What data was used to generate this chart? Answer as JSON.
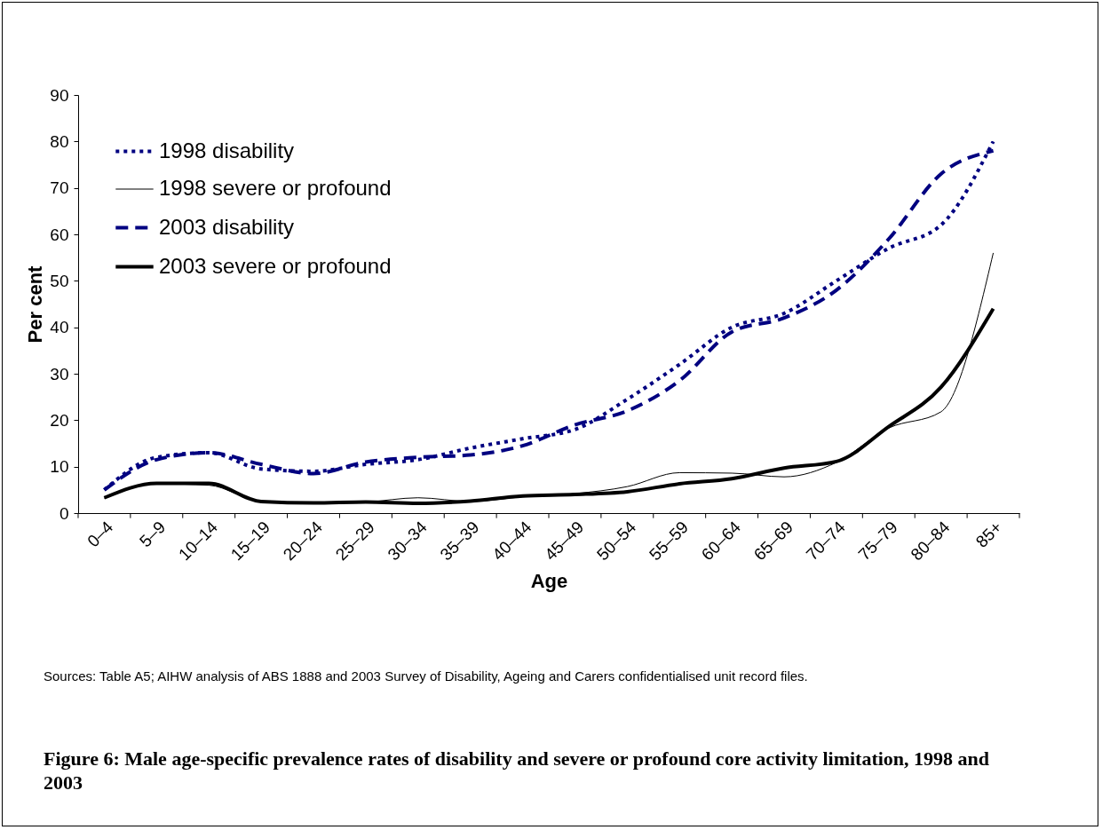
{
  "chart_data": {
    "type": "line",
    "title": "Figure 6: Male age-specific prevalence rates of disability and severe or profound core activity limitation, 1998 and 2003",
    "xlabel": "Age",
    "ylabel": "Per cent",
    "annotations": [
      "Sources: Table A5; AIHW analysis of ABS 1888 and 2003 Survey of Disability, Ageing and Carers confidentialised unit record files."
    ],
    "categories": [
      "0–4",
      "5–9",
      "10–14",
      "15–19",
      "20–24",
      "25–29",
      "30–34",
      "35–39",
      "40–44",
      "45–49",
      "50–54",
      "55–59",
      "60–64",
      "65–69",
      "70–74",
      "75–79",
      "80–84",
      "85+"
    ],
    "series": [
      {
        "name": "1998 disability",
        "color": "#000080",
        "line_style": "dotted",
        "values": [
          5,
          12,
          13,
          9.5,
          9,
          10.5,
          11.5,
          14,
          16,
          18,
          24.5,
          32,
          40,
          43,
          50,
          57,
          62,
          80
        ]
      },
      {
        "name": "1998 severe or profound",
        "color": "#000000",
        "line_style": "solid",
        "values": [
          3.2,
          6.3,
          6,
          2.5,
          2.2,
          2.4,
          3.3,
          2.5,
          3.5,
          4.2,
          5.7,
          8.7,
          8.6,
          7.8,
          10.9,
          18.3,
          21.8,
          56
        ]
      },
      {
        "name": "2003 disability",
        "color": "#000080",
        "line_style": "dashed",
        "values": [
          5,
          11.5,
          13,
          10.5,
          8.5,
          11,
          12,
          12.5,
          14.5,
          19,
          22,
          28.5,
          39,
          42,
          48,
          59,
          73,
          78
        ]
      },
      {
        "name": "2003 severe or profound",
        "color": "#000000",
        "line_style": "solid",
        "values": [
          3.3,
          6.4,
          6.4,
          2.5,
          2.2,
          2.4,
          2.1,
          2.6,
          3.7,
          4,
          4.6,
          6.3,
          7.4,
          9.7,
          11.1,
          18.6,
          27.1,
          44
        ]
      }
    ],
    "ylim": [
      0,
      90
    ],
    "yticks": [
      0,
      10,
      20,
      30,
      40,
      50,
      60,
      70,
      80,
      90
    ],
    "grid": false,
    "legend": "top left"
  }
}
